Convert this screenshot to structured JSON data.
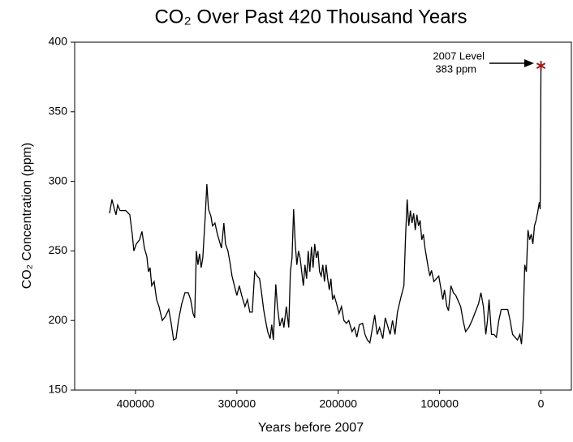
{
  "chart_data": {
    "type": "line",
    "title": "CO₂ Over Past 420 Thousand Years",
    "x_label": "Years before 2007",
    "y_label": "CO₂ Concentration (ppm)",
    "annotation": [
      "2007 Level",
      "383 ppm"
    ],
    "highlight_color": "#9b1c1c",
    "xlim": [
      460000,
      -30000
    ],
    "xticks": [
      400000,
      300000,
      200000,
      100000,
      0
    ],
    "ylim": [
      150,
      400
    ],
    "yticks": [
      150,
      200,
      250,
      300,
      350,
      400
    ],
    "grid": false,
    "series": [
      {
        "name": "CO2",
        "color": "#000000",
        "x": [
          425600,
          423200,
          420800,
          419200,
          417600,
          415200,
          409600,
          405600,
          403200,
          401600,
          399200,
          396000,
          393600,
          391200,
          388800,
          387200,
          385600,
          384000,
          381600,
          379200,
          376800,
          373600,
          370400,
          367200,
          364800,
          362400,
          360000,
          357600,
          354400,
          351200,
          348000,
          345600,
          343200,
          341600,
          340000,
          338400,
          336800,
          335200,
          333600,
          331200,
          329600,
          328000,
          325600,
          324000,
          321600,
          319200,
          317600,
          315200,
          312800,
          311200,
          308800,
          306400,
          304800,
          302400,
          300000,
          297600,
          295200,
          292000,
          289600,
          287200,
          284800,
          282400,
          280000,
          277600,
          276000,
          273600,
          271200,
          269600,
          267200,
          265600,
          264000,
          261600,
          260000,
          257600,
          255200,
          253600,
          251200,
          248800,
          247200,
          245600,
          244000,
          242400,
          240800,
          239200,
          237600,
          236000,
          234400,
          232800,
          231200,
          229600,
          228000,
          226400,
          224800,
          223200,
          221600,
          220000,
          218400,
          216800,
          215200,
          213600,
          212000,
          210400,
          208800,
          207200,
          205600,
          204000,
          201600,
          199200,
          196800,
          194400,
          192000,
          189600,
          186400,
          184000,
          181600,
          179200,
          176000,
          173600,
          171200,
          168800,
          166400,
          164000,
          161600,
          159200,
          156000,
          153600,
          151200,
          148800,
          146400,
          144000,
          141600,
          138400,
          135200,
          133600,
          132000,
          130400,
          128800,
          127200,
          125600,
          124000,
          122400,
          120800,
          119200,
          117600,
          116000,
          114400,
          112800,
          111200,
          109600,
          108000,
          105600,
          103200,
          100800,
          99200,
          96800,
          95200,
          92800,
          91200,
          88800,
          86400,
          84000,
          81600,
          79200,
          76800,
          74400,
          71200,
          68000,
          64800,
          61600,
          59200,
          56800,
          54400,
          52800,
          51200,
          48800,
          46400,
          44000,
          41600,
          39200,
          36000,
          32800,
          30400,
          28000,
          25600,
          23200,
          20800,
          19200,
          17600,
          16000,
          14400,
          12800,
          11200,
          9600,
          8000,
          6400,
          4800,
          3200,
          1600,
          800,
          0
        ],
        "values": [
          277,
          287,
          280,
          276,
          283,
          279,
          279,
          276,
          262,
          250,
          255,
          258,
          264,
          252,
          246,
          235,
          238,
          225,
          228,
          215,
          210,
          200,
          203,
          208,
          198,
          186,
          187,
          200,
          212,
          220,
          220,
          215,
          205,
          202,
          250,
          240,
          248,
          238,
          245,
          275,
          298,
          280,
          275,
          268,
          270,
          262,
          258,
          252,
          270,
          255,
          250,
          240,
          232,
          225,
          218,
          225,
          218,
          210,
          215,
          206,
          206,
          235,
          232,
          230,
          222,
          208,
          198,
          192,
          187,
          197,
          186,
          226,
          210,
          196,
          202,
          195,
          210,
          195,
          235,
          245,
          280,
          255,
          240,
          250,
          245,
          235,
          225,
          240,
          230,
          250,
          235,
          253,
          238,
          255,
          245,
          250,
          235,
          232,
          240,
          228,
          240,
          230,
          222,
          230,
          215,
          218,
          212,
          205,
          210,
          200,
          198,
          200,
          192,
          195,
          188,
          197,
          198,
          190,
          186,
          184,
          194,
          204,
          190,
          195,
          187,
          202,
          196,
          190,
          200,
          190,
          206,
          216,
          225,
          260,
          287,
          268,
          279,
          270,
          277,
          265,
          276,
          268,
          272,
          258,
          262,
          252,
          245,
          238,
          232,
          236,
          228,
          230,
          232,
          225,
          215,
          222,
          210,
          207,
          225,
          220,
          218,
          214,
          210,
          200,
          192,
          195,
          200,
          206,
          212,
          220,
          210,
          190,
          200,
          215,
          190,
          190,
          188,
          200,
          208,
          208,
          208,
          200,
          190,
          188,
          186,
          190,
          183,
          200,
          240,
          235,
          265,
          258,
          262,
          255,
          268,
          272,
          278,
          285,
          280,
          383
        ]
      }
    ]
  }
}
